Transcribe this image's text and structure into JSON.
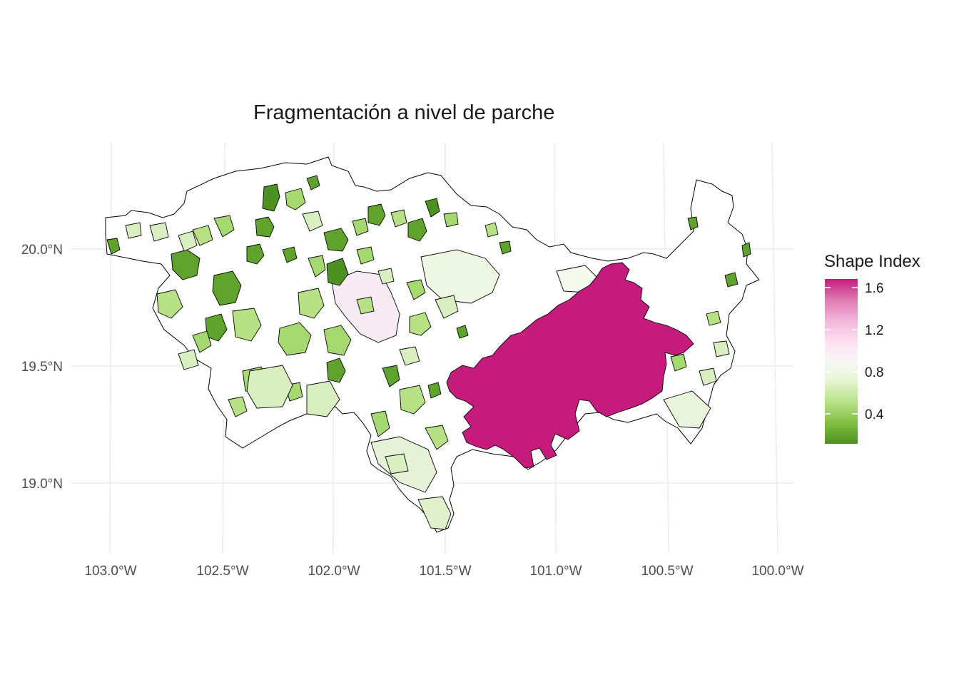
{
  "title": "Fragmentación a nivel de parche",
  "map": {
    "lat_ticks": [
      "20.0°N",
      "19.5°N",
      "19.0°N"
    ],
    "lon_ticks": [
      "103.0°W",
      "102.5°W",
      "102.0°W",
      "101.5°W",
      "101.0°W",
      "100.5°W",
      "100.0°W"
    ],
    "fill_colors": {
      "high": "#c51b7d",
      "light_pink": "#f7eaf2",
      "white": "#ffffff",
      "pale_green": "#d9efc2",
      "mid_green": "#a5d86f",
      "dark_green": "#5fa32c",
      "outline": "#000000",
      "grid": "#ebebeb"
    }
  },
  "legend": {
    "title": "Shape Index",
    "ticks": [
      "1.6",
      "1.2",
      "0.8",
      "0.4"
    ],
    "gradient": [
      "#c51b7d",
      "#de77ae",
      "#f1b6da",
      "#fde0ef",
      "#f7f7f7",
      "#e6f5d0",
      "#b8e186",
      "#7fbc41",
      "#4d9221"
    ]
  }
}
